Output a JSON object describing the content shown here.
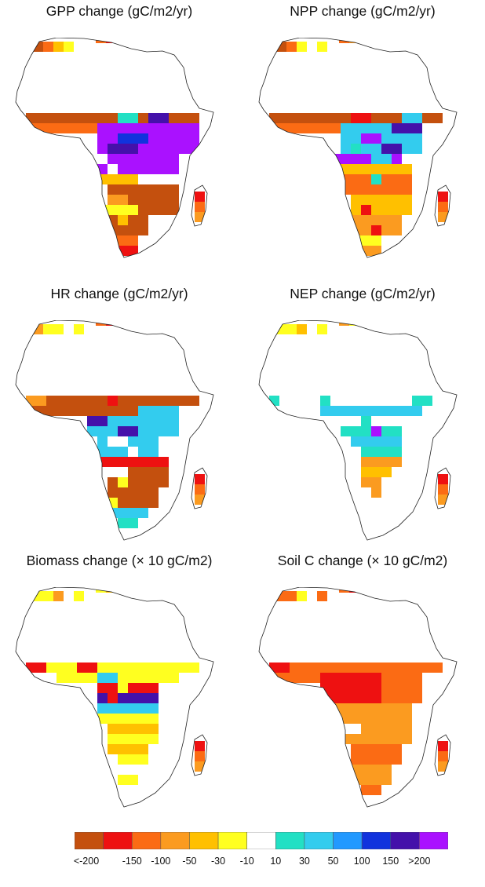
{
  "panels": [
    {
      "title": "GPP change (gC/m2/yr)",
      "pattern": "gpp"
    },
    {
      "title": "NPP change (gC/m2/yr)",
      "pattern": "npp"
    },
    {
      "title": "HR change (gC/m2/yr)",
      "pattern": "hr"
    },
    {
      "title": "NEP change (gC/m2/yr)",
      "pattern": "nep"
    },
    {
      "title": "Biomass change (×   10 gC/m2)",
      "pattern": "biomass"
    },
    {
      "title": "Soil C change (×   10 gC/m2)",
      "pattern": "soilc"
    }
  ],
  "legend": {
    "colors": [
      "#c4500e",
      "#ee1111",
      "#fb6b14",
      "#fb9b20",
      "#ffc000",
      "#ffff20",
      "#ffffff",
      "#22e0c4",
      "#33ccee",
      "#2299ff",
      "#1133dd",
      "#4411aa",
      "#aa11ff"
    ],
    "labels": [
      "<-200",
      "-150",
      "-100",
      "-50",
      "-30",
      "-10",
      "10",
      "30",
      "50",
      "100",
      "150",
      ">200"
    ]
  }
}
